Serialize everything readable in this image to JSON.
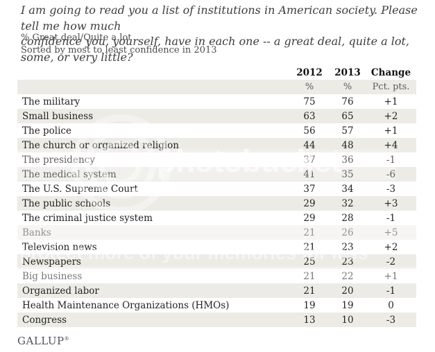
{
  "header": {
    "question_line1": "I am going to read you a list of institutions in American society. Please tell me how much",
    "question_line2": "confidence you, yourself, have in each one -- a great deal, quite a lot, some, or very little?",
    "measure_label": "% Great deal/Quite a lot",
    "sort_note": "Sorted by most to least confidence in 2013"
  },
  "table": {
    "columns": [
      "2012",
      "2013",
      "Change"
    ],
    "units": [
      "%",
      "%",
      "Pct. pts."
    ],
    "rows": [
      {
        "name": "The military",
        "y2012": "75",
        "y2013": "76",
        "change": "+1"
      },
      {
        "name": "Small business",
        "y2012": "63",
        "y2013": "65",
        "change": "+2"
      },
      {
        "name": "The police",
        "y2012": "56",
        "y2013": "57",
        "change": "+1"
      },
      {
        "name": "The church or organized religion",
        "y2012": "44",
        "y2013": "48",
        "change": "+4"
      },
      {
        "name": "The presidency",
        "y2012": "37",
        "y2013": "36",
        "change": "-1"
      },
      {
        "name": "The medical system",
        "y2012": "41",
        "y2013": "35",
        "change": "-6"
      },
      {
        "name": "The U.S. Supreme Court",
        "y2012": "37",
        "y2013": "34",
        "change": "-3"
      },
      {
        "name": "The public schools",
        "y2012": "29",
        "y2013": "32",
        "change": "+3"
      },
      {
        "name": "The criminal justice system",
        "y2012": "29",
        "y2013": "28",
        "change": "-1"
      },
      {
        "name": "Banks",
        "y2012": "21",
        "y2013": "26",
        "change": "+5"
      },
      {
        "name": "Television news",
        "y2012": "21",
        "y2013": "23",
        "change": "+2"
      },
      {
        "name": "Newspapers",
        "y2012": "25",
        "y2013": "23",
        "change": "-2"
      },
      {
        "name": "Big business",
        "y2012": "21",
        "y2013": "22",
        "change": "+1"
      },
      {
        "name": "Organized labor",
        "y2012": "21",
        "y2013": "20",
        "change": "-1"
      },
      {
        "name": "Health Maintenance Organizations (HMOs)",
        "y2012": "19",
        "y2013": "19",
        "change": "0"
      },
      {
        "name": "Congress",
        "y2012": "13",
        "y2013": "10",
        "change": "-3"
      }
    ]
  },
  "footer": {
    "brand": "GALLUP",
    "trademark": "®"
  },
  "watermark": {
    "brand": "photobucket",
    "tagline": "protect more of your memories for less"
  },
  "colors": {
    "row_shade": "#ECEBE5",
    "text_dark": "#222222",
    "text_muted": "#5A5A5A"
  },
  "chart_data": {
    "type": "table",
    "title": "I am going to read you a list of institutions in American society. Please tell me how much confidence you, yourself, have in each one -- a great deal, quite a lot, some, or very little?",
    "subtitle": "% Great deal/Quite a lot",
    "sort_note": "Sorted by most to least confidence in 2013",
    "categories": [
      "The military",
      "Small business",
      "The police",
      "The church or organized religion",
      "The presidency",
      "The medical system",
      "The U.S. Supreme Court",
      "The public schools",
      "The criminal justice system",
      "Banks",
      "Television news",
      "Newspapers",
      "Big business",
      "Organized labor",
      "Health Maintenance Organizations (HMOs)",
      "Congress"
    ],
    "series": [
      {
        "name": "2012 (%)",
        "values": [
          75,
          63,
          56,
          44,
          37,
          41,
          37,
          29,
          29,
          21,
          21,
          25,
          21,
          21,
          19,
          13
        ]
      },
      {
        "name": "2013 (%)",
        "values": [
          76,
          65,
          57,
          48,
          36,
          35,
          34,
          32,
          28,
          26,
          23,
          23,
          22,
          20,
          19,
          10
        ]
      },
      {
        "name": "Change (Pct. pts.)",
        "values": [
          1,
          2,
          1,
          4,
          -1,
          -6,
          -3,
          3,
          -1,
          5,
          2,
          -2,
          1,
          -1,
          0,
          -3
        ]
      }
    ],
    "source": "GALLUP"
  }
}
